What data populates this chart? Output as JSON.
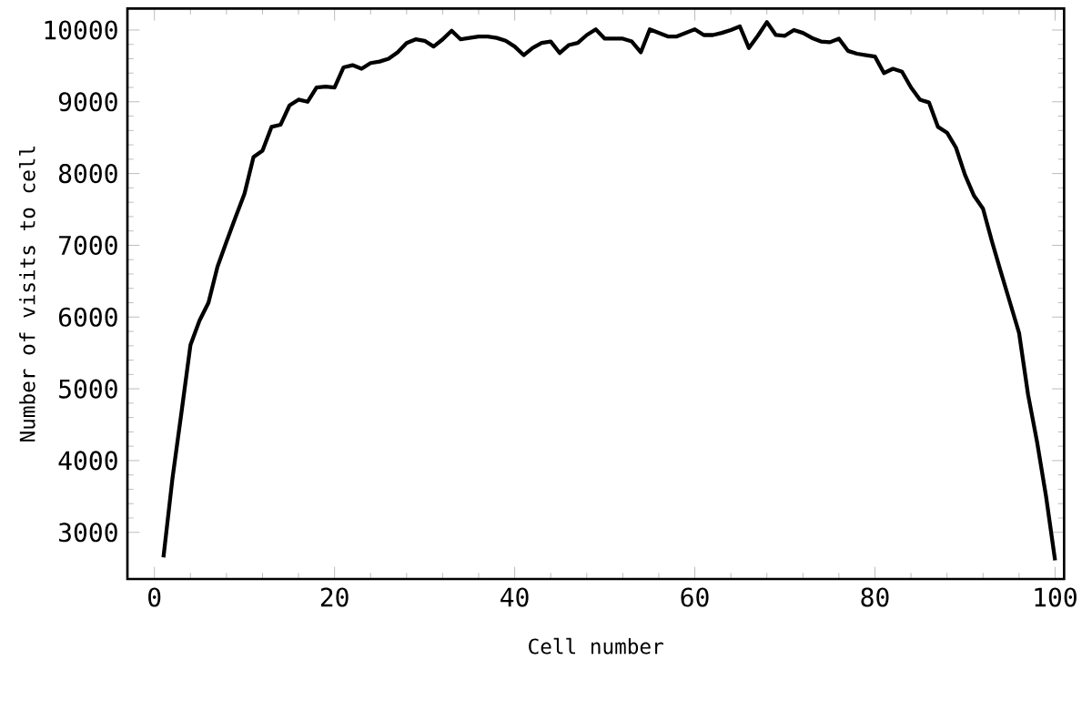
{
  "chart_data": {
    "type": "line",
    "xlabel": "Cell number",
    "ylabel": "Number of visits to cell",
    "x": [
      1,
      2,
      3,
      4,
      5,
      6,
      7,
      8,
      9,
      10,
      11,
      12,
      13,
      14,
      15,
      16,
      17,
      18,
      19,
      20,
      21,
      22,
      23,
      24,
      25,
      26,
      27,
      28,
      29,
      30,
      31,
      32,
      33,
      34,
      35,
      36,
      37,
      38,
      39,
      40,
      41,
      42,
      43,
      44,
      45,
      46,
      47,
      48,
      49,
      50,
      51,
      52,
      53,
      54,
      55,
      56,
      57,
      58,
      59,
      60,
      61,
      62,
      63,
      64,
      65,
      66,
      67,
      68,
      69,
      70,
      71,
      72,
      73,
      74,
      75,
      76,
      77,
      78,
      79,
      80,
      81,
      82,
      83,
      84,
      85,
      86,
      87,
      88,
      89,
      90,
      91,
      92,
      93,
      94,
      95,
      96,
      97,
      98,
      99,
      100
    ],
    "series": [
      {
        "color": "#000000",
        "values": [
          2650,
          3750,
          4670,
          5610,
          5950,
          6200,
          6700,
          7050,
          7390,
          7720,
          8230,
          8320,
          8650,
          8680,
          8950,
          9030,
          9000,
          9200,
          9210,
          9200,
          9480,
          9510,
          9460,
          9540,
          9560,
          9600,
          9690,
          9820,
          9870,
          9850,
          9770,
          9870,
          9990,
          9870,
          9890,
          9910,
          9910,
          9890,
          9850,
          9770,
          9650,
          9750,
          9820,
          9840,
          9680,
          9790,
          9820,
          9930,
          10010,
          9880,
          9880,
          9880,
          9840,
          9690,
          10010,
          9960,
          9910,
          9910,
          9960,
          10010,
          9930,
          9930,
          9960,
          10000,
          10050,
          9750,
          9920,
          10110,
          9930,
          9920,
          10000,
          9960,
          9890,
          9840,
          9830,
          9880,
          9710,
          9670,
          9650,
          9630,
          9400,
          9460,
          9420,
          9200,
          9030,
          8990,
          8650,
          8570,
          8360,
          7980,
          7690,
          7510,
          7050,
          6620,
          6200,
          5780,
          4920,
          4260,
          3500,
          2610
        ]
      }
    ],
    "xlim": [
      -3,
      101
    ],
    "ylim": [
      2350,
      10300
    ],
    "xticks": [
      0,
      20,
      40,
      60,
      80,
      100
    ],
    "yticks": [
      3000,
      4000,
      5000,
      6000,
      7000,
      8000,
      9000,
      10000
    ],
    "grid": false,
    "marker": "none",
    "line_style": "solid"
  }
}
